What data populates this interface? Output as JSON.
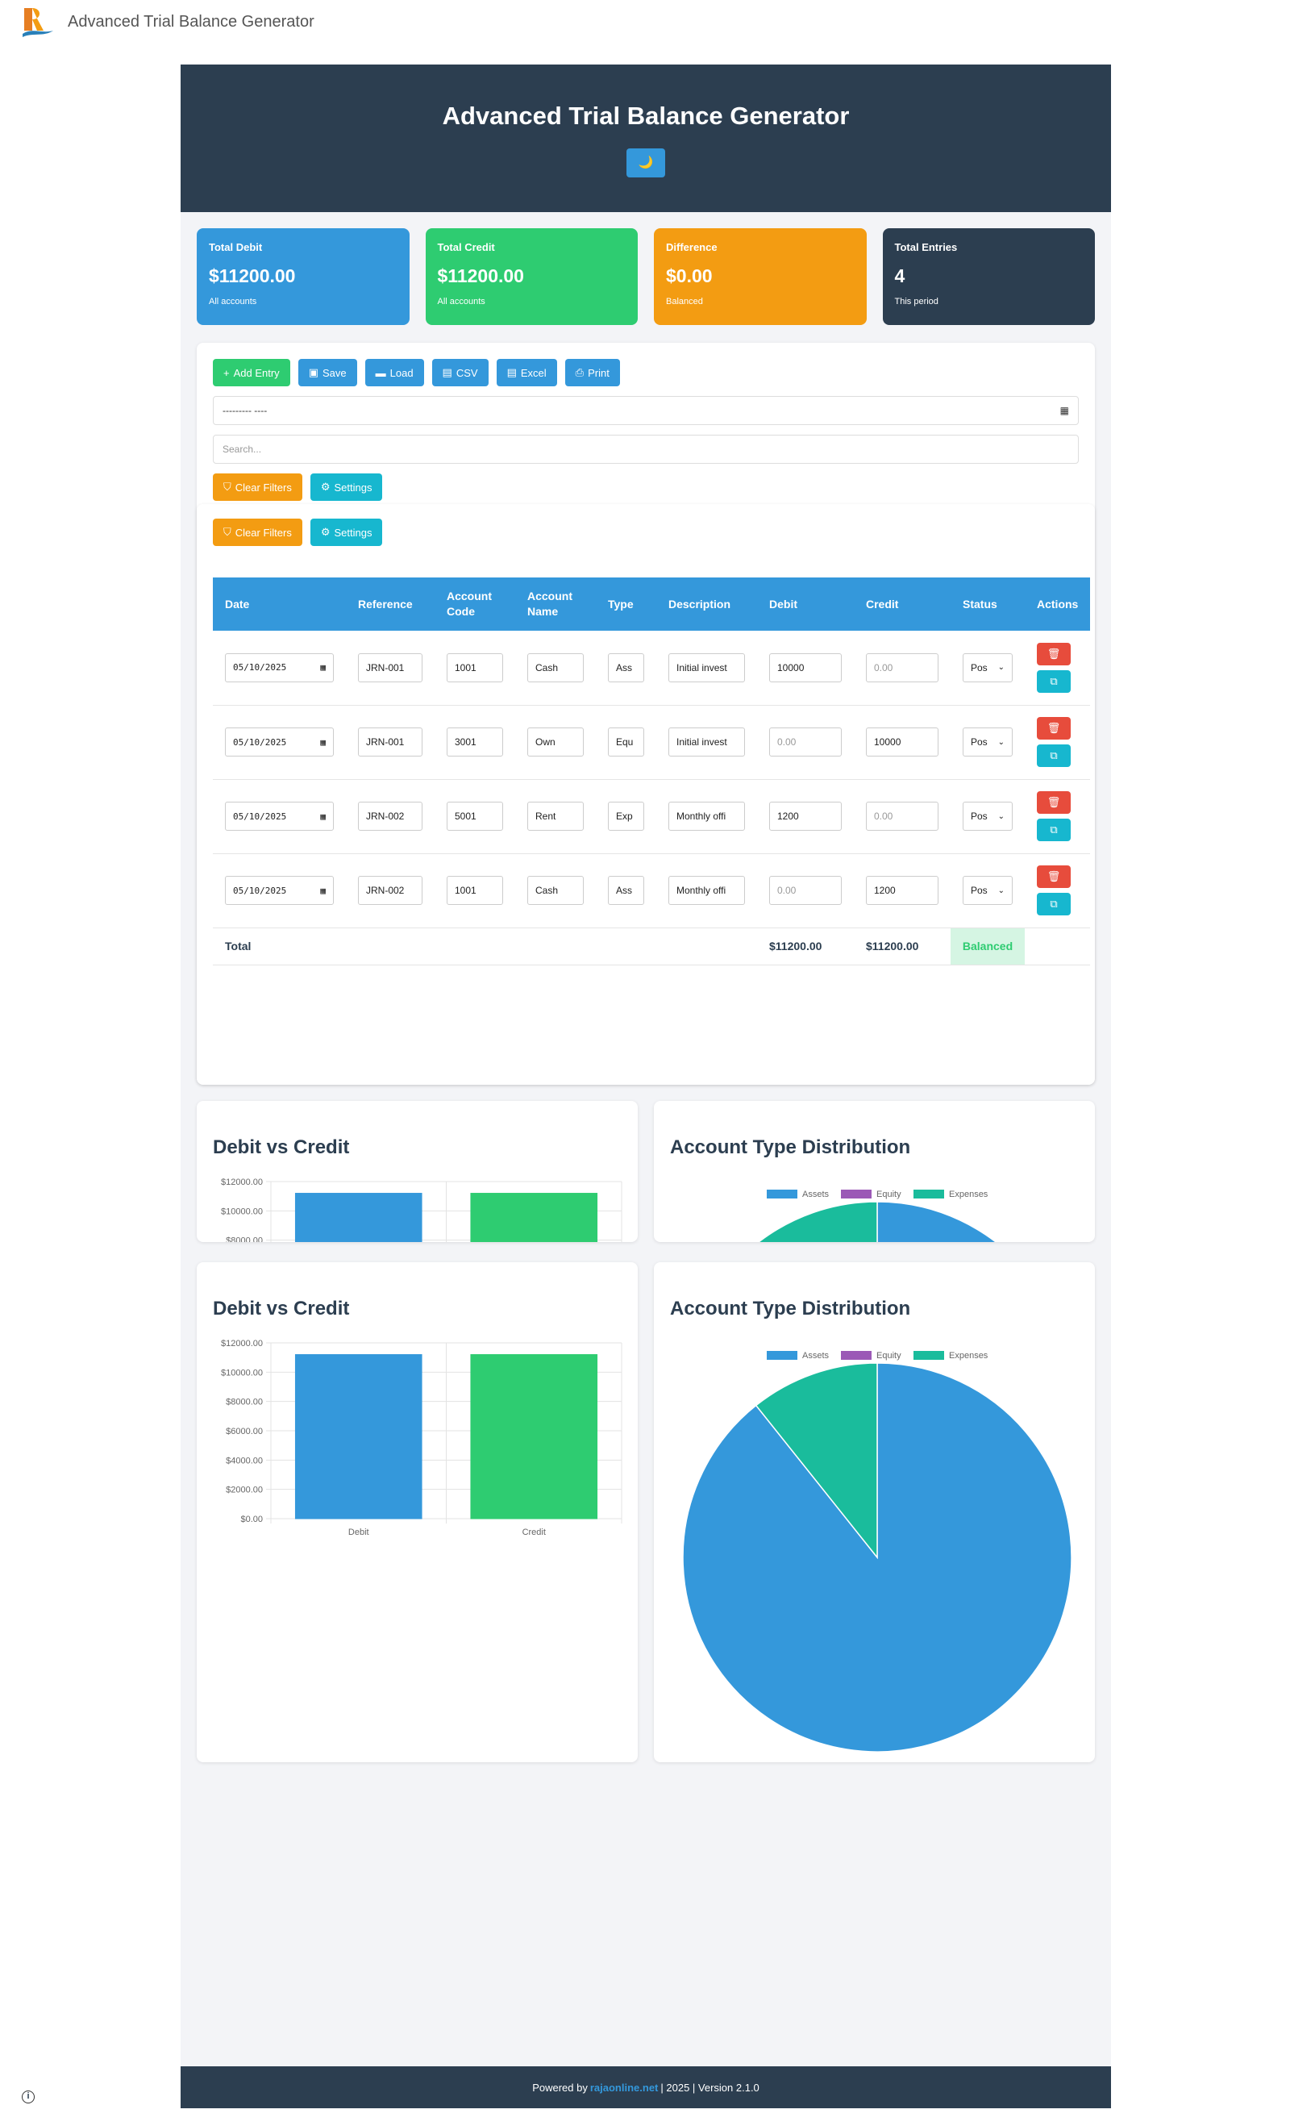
{
  "app": {
    "title": "Advanced Trial Balance Generator",
    "theme_icon": "🌙"
  },
  "header": {
    "title": "Advanced Trial Balance Generator"
  },
  "stats": [
    {
      "label": "Total Debit",
      "value": "$11200.00",
      "sub": "All accounts",
      "color": "#3498db"
    },
    {
      "label": "Total Credit",
      "value": "$11200.00",
      "sub": "All accounts",
      "color": "#2ecc71"
    },
    {
      "label": "Difference",
      "value": "$0.00",
      "sub": "Balanced",
      "color": "#f39c12"
    },
    {
      "label": "Total Entries",
      "value": "4",
      "sub": "This period",
      "color": "#2c3e50"
    }
  ],
  "toolbar": {
    "add": "Add Entry",
    "save": "Save",
    "load": "Load",
    "csv": "CSV",
    "excel": "Excel",
    "print": "Print"
  },
  "filters": {
    "date_placeholder": "--------- ----",
    "search_placeholder": "Search...",
    "clear": "Clear Filters",
    "settings": "Settings"
  },
  "table": {
    "headers": [
      "Date",
      "Reference",
      "Account Code",
      "Account Name",
      "Type",
      "Description",
      "Debit",
      "Credit",
      "Status",
      "Actions"
    ],
    "rows": [
      {
        "date": "05/10/2025",
        "ref": "JRN-001",
        "code": "1001",
        "name": "Cash",
        "type": "Ass",
        "desc": "Initial invest",
        "debit": "10000",
        "credit": "0.00",
        "status": "Pos"
      },
      {
        "date": "05/10/2025",
        "ref": "JRN-001",
        "code": "3001",
        "name": "Own",
        "type": "Equ",
        "desc": "Initial invest",
        "debit": "0.00",
        "credit": "10000",
        "status": "Pos"
      },
      {
        "date": "05/10/2025",
        "ref": "JRN-002",
        "code": "5001",
        "name": "Rent",
        "type": "Exp",
        "desc": "Monthly offi",
        "debit": "1200",
        "credit": "0.00",
        "status": "Pos"
      },
      {
        "date": "05/10/2025",
        "ref": "JRN-002",
        "code": "1001",
        "name": "Cash",
        "type": "Ass",
        "desc": "Monthly offi",
        "debit": "0.00",
        "credit": "1200",
        "status": "Pos"
      }
    ],
    "total_label": "Total",
    "total_debit": "$11200.00",
    "total_credit": "$11200.00",
    "total_status": "Balanced"
  },
  "chart_data": [
    {
      "type": "bar",
      "title": "Debit vs Credit",
      "categories": [
        "Debit",
        "Credit"
      ],
      "values": [
        11200,
        11200
      ],
      "colors": [
        "#3498db",
        "#2ecc71"
      ],
      "ylim": [
        0,
        12000
      ],
      "yticks": [
        "$12000.00",
        "$10000.00",
        "$8000.00",
        "$6000.00",
        "$4000.00",
        "$2000.00",
        "$0.00"
      ],
      "grid": true
    },
    {
      "type": "pie",
      "title": "Account Type Distribution",
      "categories": [
        "Assets",
        "Equity",
        "Expenses"
      ],
      "values": [
        10000,
        0,
        1200
      ],
      "colors": [
        "#3498db",
        "#9b59b6",
        "#1abc9c"
      ],
      "legend": "top"
    }
  ],
  "footer": {
    "prefix": "Powered by",
    "link": "rajaonline.net",
    "suffix": "| 2025 | Version 2.1.0"
  }
}
